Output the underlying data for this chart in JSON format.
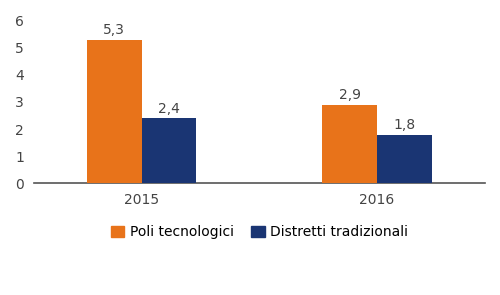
{
  "categories": [
    "2015",
    "2016"
  ],
  "poli_tecnologici": [
    5.3,
    2.9
  ],
  "distretti_tradizionali": [
    2.4,
    1.8
  ],
  "poli_color": "#E8731A",
  "distretti_color": "#1A3573",
  "ylim": [
    0,
    6
  ],
  "yticks": [
    0,
    1,
    2,
    3,
    4,
    5,
    6
  ],
  "bar_width": 0.28,
  "legend_poli": "Poli tecnologici",
  "legend_distretti": "Distretti tradizionali",
  "label_fontsize": 10,
  "tick_fontsize": 10,
  "legend_fontsize": 10,
  "value_labels_poli": [
    "5,3",
    "2,9"
  ],
  "value_labels_distretti": [
    "2,4",
    "1,8"
  ],
  "background_color": "#ffffff",
  "group_centers": [
    1.0,
    2.2
  ]
}
